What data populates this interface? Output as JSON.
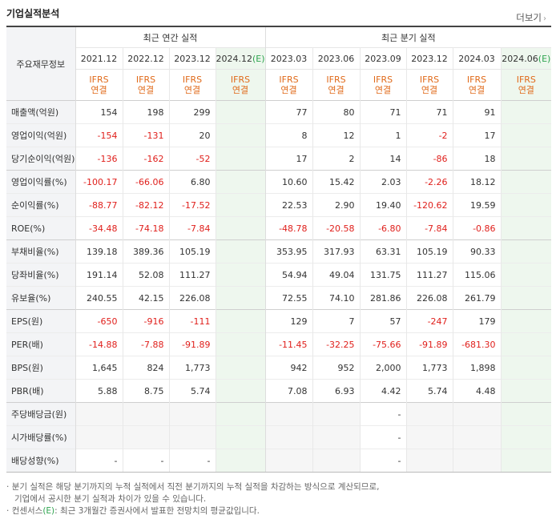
{
  "header": {
    "title": "기업실적분석",
    "more_label": "더보기"
  },
  "table": {
    "row_header_label": "주요재무정보",
    "groups": {
      "annual": "최근 연간 실적",
      "quarterly": "최근 분기 실적"
    },
    "annual_periods": [
      "2021.12",
      "2022.12",
      "2023.12",
      "2024.12"
    ],
    "quarterly_periods": [
      "2023.03",
      "2023.06",
      "2023.09",
      "2023.12",
      "2024.03",
      "2024.06"
    ],
    "estimate_mark": "(E)",
    "ifrs_line1": "IFRS",
    "ifrs_line2": "연결",
    "rows": [
      {
        "label": "매출액(억원)",
        "annual": [
          "154",
          "198",
          "299",
          ""
        ],
        "quarterly": [
          "77",
          "80",
          "71",
          "71",
          "91",
          ""
        ]
      },
      {
        "label": "영업이익(억원)",
        "annual": [
          "-154",
          "-131",
          "20",
          ""
        ],
        "quarterly": [
          "8",
          "12",
          "1",
          "-2",
          "17",
          ""
        ]
      },
      {
        "label": "당기순이익(억원)",
        "annual": [
          "-136",
          "-162",
          "-52",
          ""
        ],
        "quarterly": [
          "17",
          "2",
          "14",
          "-86",
          "18",
          ""
        ]
      },
      {
        "label": "영업이익률(%)",
        "annual": [
          "-100.17",
          "-66.06",
          "6.80",
          ""
        ],
        "quarterly": [
          "10.60",
          "15.42",
          "2.03",
          "-2.26",
          "18.12",
          ""
        ]
      },
      {
        "label": "순이익률(%)",
        "annual": [
          "-88.77",
          "-82.12",
          "-17.52",
          ""
        ],
        "quarterly": [
          "22.53",
          "2.90",
          "19.40",
          "-120.62",
          "19.59",
          ""
        ]
      },
      {
        "label": "ROE(%)",
        "annual": [
          "-34.48",
          "-74.18",
          "-7.84",
          ""
        ],
        "quarterly": [
          "-48.78",
          "-20.58",
          "-6.80",
          "-7.84",
          "-0.86",
          ""
        ]
      },
      {
        "label": "부채비율(%)",
        "annual": [
          "139.18",
          "389.36",
          "105.19",
          ""
        ],
        "quarterly": [
          "353.95",
          "317.93",
          "63.31",
          "105.19",
          "90.33",
          ""
        ]
      },
      {
        "label": "당좌비율(%)",
        "annual": [
          "191.14",
          "52.08",
          "111.27",
          ""
        ],
        "quarterly": [
          "54.94",
          "49.04",
          "131.75",
          "111.27",
          "115.06",
          ""
        ]
      },
      {
        "label": "유보율(%)",
        "annual": [
          "240.55",
          "42.15",
          "226.08",
          ""
        ],
        "quarterly": [
          "72.55",
          "74.10",
          "281.86",
          "226.08",
          "261.79",
          ""
        ]
      },
      {
        "label": "EPS(원)",
        "annual": [
          "-650",
          "-916",
          "-111",
          ""
        ],
        "quarterly": [
          "129",
          "7",
          "57",
          "-247",
          "179",
          ""
        ]
      },
      {
        "label": "PER(배)",
        "annual": [
          "-14.88",
          "-7.88",
          "-91.89",
          ""
        ],
        "quarterly": [
          "-11.45",
          "-32.25",
          "-75.66",
          "-91.89",
          "-681.30",
          ""
        ]
      },
      {
        "label": "BPS(원)",
        "annual": [
          "1,645",
          "824",
          "1,773",
          ""
        ],
        "quarterly": [
          "942",
          "952",
          "2,000",
          "1,773",
          "1,898",
          ""
        ]
      },
      {
        "label": "PBR(배)",
        "annual": [
          "5.88",
          "8.75",
          "5.74",
          ""
        ],
        "quarterly": [
          "7.08",
          "6.93",
          "4.42",
          "5.74",
          "4.48",
          ""
        ]
      },
      {
        "label": "주당배당금(원)",
        "annual": [
          "",
          "",
          "",
          ""
        ],
        "quarterly": [
          "",
          "",
          "-",
          "",
          "",
          ""
        ]
      },
      {
        "label": "시가배당률(%)",
        "annual": [
          "",
          "",
          "",
          ""
        ],
        "quarterly": [
          "",
          "",
          "-",
          "",
          "",
          ""
        ]
      },
      {
        "label": "배당성향(%)",
        "annual": [
          "-",
          "-",
          "-",
          ""
        ],
        "quarterly": [
          "",
          "",
          "-",
          "",
          "",
          ""
        ]
      }
    ]
  },
  "footnotes": {
    "line1": "분기 실적은 해당 분기까지의 누적 실적에서 직전 분기까지의 누적 실적을 차감하는 방식으로 계산되므로,",
    "line1b": "기업에서 공시한 분기 실적과 차이가 있을 수 있습니다.",
    "line2_prefix": "컨센서스",
    "line2_mark": "(E)",
    "line2_suffix": ": 최근 3개월간 증권사에서 발표한 전망치의 평균값입니다."
  }
}
